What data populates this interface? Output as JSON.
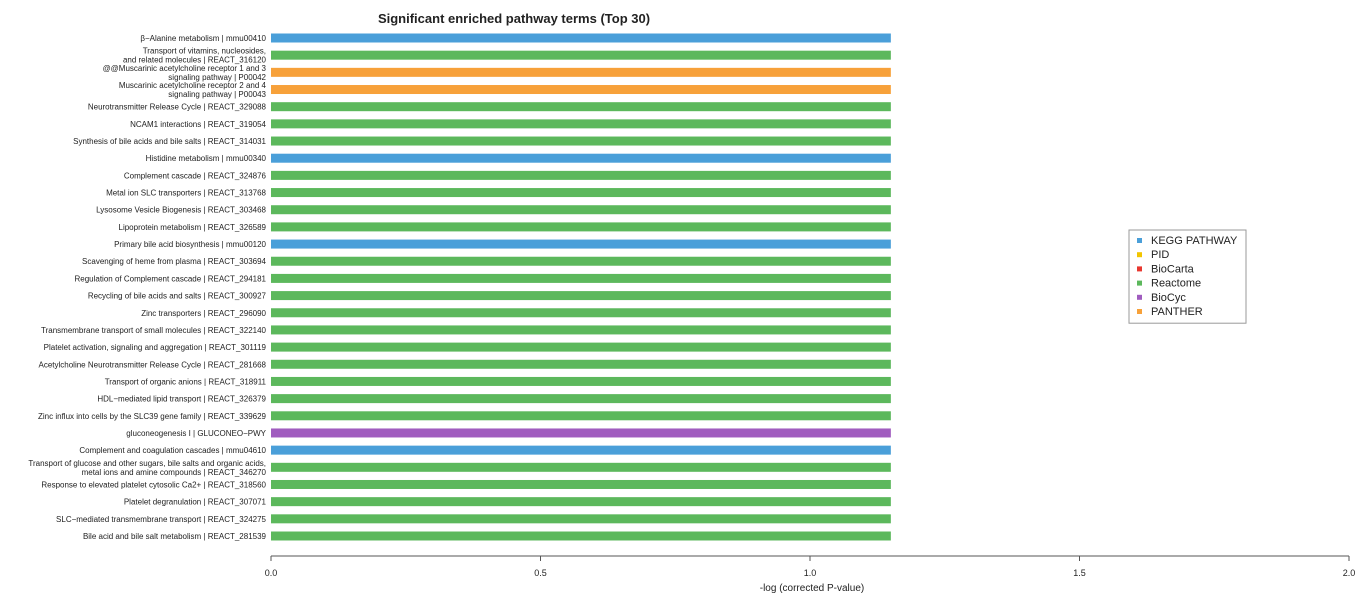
{
  "chart_data": {
    "type": "bar",
    "orientation": "horizontal",
    "title": "Significant enriched pathway terms (Top 30)",
    "xlabel": "-log (corrected P-value)",
    "ylabel": "",
    "xlim": [
      0,
      2.0
    ],
    "x_ticks": [
      "0.0",
      "0.5",
      "1.0",
      "1.5",
      "2.0"
    ],
    "grid": false,
    "legend_position": "right",
    "legend": [
      {
        "name": "KEGG PATHWAY",
        "color": "#4a9fd9"
      },
      {
        "name": "PID",
        "color": "#f2c500"
      },
      {
        "name": "BioCarta",
        "color": "#e8372f"
      },
      {
        "name": "Reactome",
        "color": "#5cb85c"
      },
      {
        "name": "BioCyc",
        "color": "#a05cbf"
      },
      {
        "name": "PANTHER",
        "color": "#f7a13a"
      }
    ],
    "categories": [
      {
        "label": [
          "β−Alanine metabolism | mmu00410"
        ],
        "value": 1.15,
        "database": "KEGG PATHWAY"
      },
      {
        "label": [
          "Transport of vitamins, nucleosides,",
          "and related molecules | REACT_316120"
        ],
        "value": 1.15,
        "database": "Reactome"
      },
      {
        "label": [
          "@@Muscarinic acetylcholine receptor 1 and 3",
          "signaling pathway | P00042"
        ],
        "value": 1.15,
        "database": "PANTHER"
      },
      {
        "label": [
          "Muscarinic acetylcholine receptor 2 and 4",
          "signaling pathway | P00043"
        ],
        "value": 1.15,
        "database": "PANTHER"
      },
      {
        "label": [
          "Neurotransmitter Release Cycle | REACT_329088"
        ],
        "value": 1.15,
        "database": "Reactome"
      },
      {
        "label": [
          "NCAM1 interactions | REACT_319054"
        ],
        "value": 1.15,
        "database": "Reactome"
      },
      {
        "label": [
          "Synthesis of bile acids and bile salts | REACT_314031"
        ],
        "value": 1.15,
        "database": "Reactome"
      },
      {
        "label": [
          "Histidine metabolism | mmu00340"
        ],
        "value": 1.15,
        "database": "KEGG PATHWAY"
      },
      {
        "label": [
          "Complement cascade | REACT_324876"
        ],
        "value": 1.15,
        "database": "Reactome"
      },
      {
        "label": [
          "Metal ion SLC transporters | REACT_313768"
        ],
        "value": 1.15,
        "database": "Reactome"
      },
      {
        "label": [
          "Lysosome Vesicle Biogenesis | REACT_303468"
        ],
        "value": 1.15,
        "database": "Reactome"
      },
      {
        "label": [
          "Lipoprotein metabolism | REACT_326589"
        ],
        "value": 1.15,
        "database": "Reactome"
      },
      {
        "label": [
          "Primary bile acid biosynthesis | mmu00120"
        ],
        "value": 1.15,
        "database": "KEGG PATHWAY"
      },
      {
        "label": [
          "Scavenging of heme from plasma | REACT_303694"
        ],
        "value": 1.15,
        "database": "Reactome"
      },
      {
        "label": [
          "Regulation of Complement cascade | REACT_294181"
        ],
        "value": 1.15,
        "database": "Reactome"
      },
      {
        "label": [
          "Recycling of bile acids and salts | REACT_300927"
        ],
        "value": 1.15,
        "database": "Reactome"
      },
      {
        "label": [
          "Zinc transporters | REACT_296090"
        ],
        "value": 1.15,
        "database": "Reactome"
      },
      {
        "label": [
          "Transmembrane transport of small molecules | REACT_322140"
        ],
        "value": 1.15,
        "database": "Reactome"
      },
      {
        "label": [
          "Platelet activation, signaling and aggregation | REACT_301119"
        ],
        "value": 1.15,
        "database": "Reactome"
      },
      {
        "label": [
          "Acetylcholine Neurotransmitter Release Cycle | REACT_281668"
        ],
        "value": 1.15,
        "database": "Reactome"
      },
      {
        "label": [
          "Transport of organic anions | REACT_318911"
        ],
        "value": 1.15,
        "database": "Reactome"
      },
      {
        "label": [
          "HDL−mediated lipid transport | REACT_326379"
        ],
        "value": 1.15,
        "database": "Reactome"
      },
      {
        "label": [
          "Zinc influx into cells by the SLC39 gene family | REACT_339629"
        ],
        "value": 1.15,
        "database": "Reactome"
      },
      {
        "label": [
          "gluconeogenesis I | GLUCONEO−PWY"
        ],
        "value": 1.15,
        "database": "BioCyc"
      },
      {
        "label": [
          "Complement and coagulation cascades | mmu04610"
        ],
        "value": 1.15,
        "database": "KEGG PATHWAY"
      },
      {
        "label": [
          "Transport of glucose and other sugars, bile salts and organic acids,",
          "metal ions and amine compounds | REACT_346270"
        ],
        "value": 1.15,
        "database": "Reactome"
      },
      {
        "label": [
          "Response to elevated platelet cytosolic Ca2+ | REACT_318560"
        ],
        "value": 1.15,
        "database": "Reactome"
      },
      {
        "label": [
          "Platelet degranulation  | REACT_307071"
        ],
        "value": 1.15,
        "database": "Reactome"
      },
      {
        "label": [
          "SLC−mediated transmembrane transport | REACT_324275"
        ],
        "value": 1.15,
        "database": "Reactome"
      },
      {
        "label": [
          "Bile acid and bile salt metabolism | REACT_281539"
        ],
        "value": 1.15,
        "database": "Reactome"
      }
    ]
  }
}
